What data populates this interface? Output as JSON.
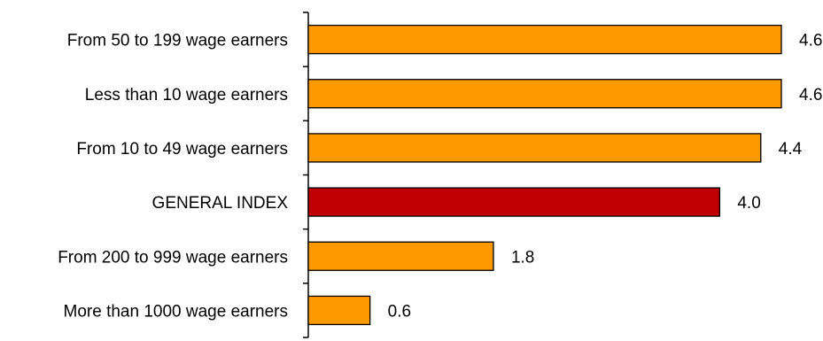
{
  "chart_data": {
    "type": "bar",
    "orientation": "horizontal",
    "categories": [
      "From 50 to 199 wage earners",
      "Less than 10 wage earners",
      "From 10 to 49 wage earners",
      "GENERAL INDEX",
      "From 200 to 999 wage earners",
      "More than 1000 wage earners"
    ],
    "values": [
      4.6,
      4.6,
      4.4,
      4.0,
      1.8,
      0.6
    ],
    "value_labels": [
      "4.6",
      "4.6",
      "4.4",
      "4.0",
      "1.8",
      "0.6"
    ],
    "title": "",
    "xlabel": "",
    "ylabel": "",
    "xlim": [
      0,
      4.6
    ],
    "grid": false,
    "legend": "none",
    "colors": {
      "default_bar": "#ff9900",
      "highlight_bar": "#c00000",
      "highlight_category": "GENERAL INDEX"
    }
  }
}
